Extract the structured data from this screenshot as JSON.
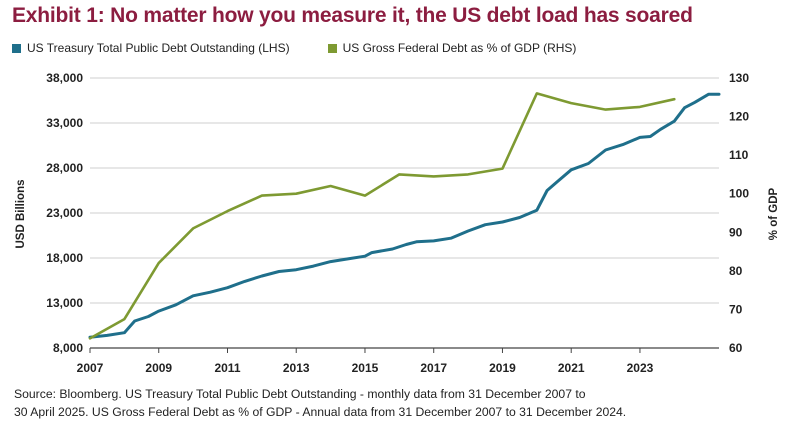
{
  "title": "Exhibit 1: No matter how you measure it, the US debt load has soared",
  "colors": {
    "title": "#8c1d40",
    "debt": "#1f6f8b",
    "gdp": "#7e9a32",
    "grid": "#cfcfcf"
  },
  "footer": {
    "line1": "Source: Bloomberg. US Treasury Total Public Debt Outstanding - monthly data from 31 December 2007 to",
    "line2": "30 April 2025. US Gross Federal Debt as % of GDP - Annual data from 31 December 2007 to 31 December 2024."
  },
  "chart_data": {
    "type": "line",
    "title": "Exhibit 1: No matter how you measure it, the US debt load has soared",
    "legend_position": "top-left",
    "grid": true,
    "xlabel": "",
    "ylabel_left": "USD Billions",
    "ylabel_right": "% of GDP",
    "xlim": [
      2007,
      2025.3
    ],
    "ylim_left": [
      8000,
      38000
    ],
    "ylim_right": [
      60,
      130
    ],
    "x_ticks": [
      "2007",
      "2009",
      "2011",
      "2013",
      "2015",
      "2017",
      "2019",
      "2021",
      "2023"
    ],
    "y_left_ticks": [
      "8,000",
      "13,000",
      "18,000",
      "23,000",
      "28,000",
      "33,000",
      "38,000"
    ],
    "y_right_ticks": [
      "60",
      "70",
      "80",
      "90",
      "100",
      "110",
      "120",
      "130"
    ],
    "series": [
      {
        "name": "US Treasury Total Public Debt Outstanding (LHS)",
        "axis": "left",
        "x": [
          2007.0,
          2007.5,
          2008.0,
          2008.3,
          2008.7,
          2009.0,
          2009.5,
          2010.0,
          2010.5,
          2011.0,
          2011.5,
          2012.0,
          2012.5,
          2013.0,
          2013.5,
          2014.0,
          2014.5,
          2015.0,
          2015.2,
          2015.8,
          2016.2,
          2016.5,
          2017.0,
          2017.5,
          2018.0,
          2018.5,
          2019.0,
          2019.5,
          2020.0,
          2020.3,
          2020.6,
          2021.0,
          2021.5,
          2022.0,
          2022.5,
          2023.0,
          2023.3,
          2023.6,
          2024.0,
          2024.3,
          2024.6,
          2025.0,
          2025.3
        ],
        "values": [
          9200,
          9400,
          9700,
          11000,
          11500,
          12100,
          12800,
          13800,
          14200,
          14700,
          15400,
          16000,
          16500,
          16700,
          17100,
          17600,
          17900,
          18200,
          18600,
          19000,
          19500,
          19800,
          19900,
          20200,
          21000,
          21700,
          22000,
          22500,
          23300,
          25500,
          26500,
          27800,
          28500,
          30000,
          30600,
          31400,
          31500,
          32300,
          33200,
          34700,
          35300,
          36200,
          36200
        ]
      },
      {
        "name": "US Gross Federal Debt as % of GDP (RHS)",
        "axis": "right",
        "x": [
          2007,
          2008,
          2009,
          2010,
          2011,
          2012,
          2013,
          2014,
          2015,
          2016,
          2017,
          2018,
          2019,
          2020,
          2021,
          2022,
          2023,
          2024
        ],
        "values": [
          62.5,
          67.5,
          82.0,
          91.0,
          95.5,
          99.5,
          100.0,
          102.0,
          99.5,
          105.0,
          104.5,
          105.0,
          106.5,
          126.0,
          123.5,
          121.8,
          122.5,
          124.5
        ]
      }
    ]
  }
}
